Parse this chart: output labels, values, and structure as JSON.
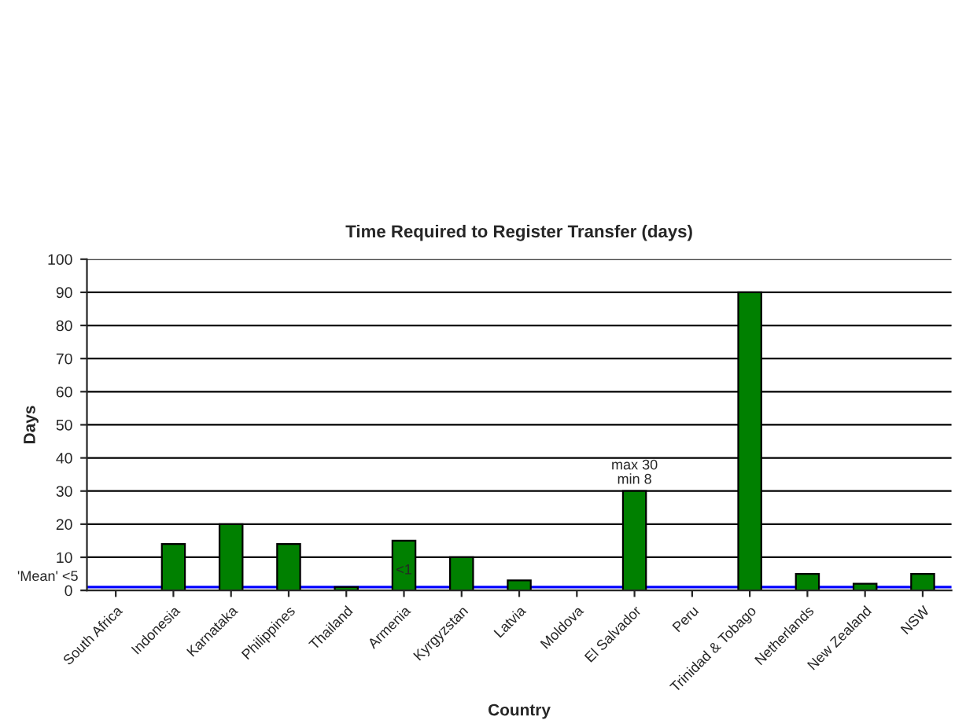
{
  "chart_data": {
    "type": "bar",
    "title": "Time Required to Register Transfer (days)",
    "xlabel": "Country",
    "ylabel": "Days",
    "categories": [
      "South Africa",
      "Indonesia",
      "Karnataka",
      "Philippines",
      "Thailand",
      "Armenia",
      "Kyrgyzstan",
      "Latvia",
      "Moldova",
      "El Salvador",
      "Peru",
      "Trinidad & Tobago",
      "Netherlands",
      "New Zealand",
      "NSW"
    ],
    "values": [
      null,
      14,
      20,
      14,
      1,
      15,
      10,
      3,
      null,
      30,
      null,
      90,
      5,
      2,
      5
    ],
    "color": "#008000",
    "ylim": [
      0,
      100
    ],
    "yticks": [
      0,
      10,
      20,
      30,
      40,
      50,
      60,
      70,
      80,
      90,
      100
    ],
    "grid": "y",
    "legend": false,
    "ref_lines": [
      {
        "axis": "y",
        "value": 1,
        "label": "'Mean' <5",
        "color": "#0000ff"
      }
    ],
    "annotations": [
      {
        "text": "max 30\nmin 8",
        "x": "El Salvador",
        "y": 30
      },
      {
        "text": "<1",
        "x": "Armenia",
        "y": 6
      }
    ]
  }
}
